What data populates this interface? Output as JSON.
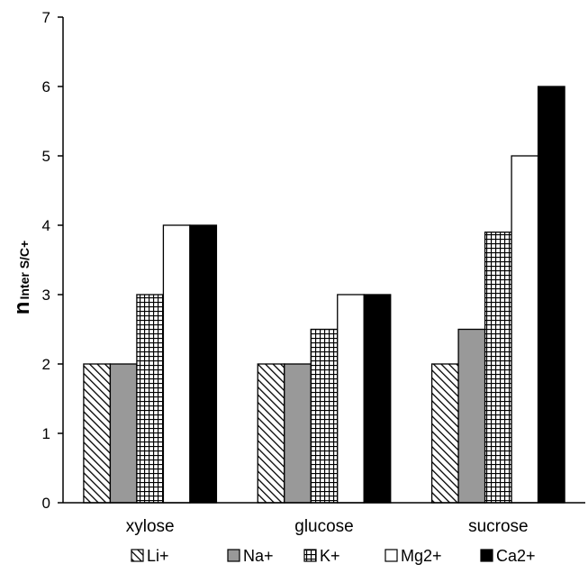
{
  "chart_data": {
    "type": "bar",
    "categories": [
      "xylose",
      "glucose",
      "sucrose"
    ],
    "series": [
      {
        "name": "Li+",
        "values": [
          2,
          2,
          2
        ],
        "pattern": "diagonal-hatch",
        "fill": "#ffffff"
      },
      {
        "name": "Na+",
        "values": [
          2,
          2,
          2.5
        ],
        "pattern": "solid",
        "fill": "#999999"
      },
      {
        "name": "K+",
        "values": [
          3,
          2.5,
          3.9
        ],
        "pattern": "grid",
        "fill": "#ffffff"
      },
      {
        "name": "Mg2+",
        "values": [
          4,
          3,
          5
        ],
        "pattern": "solid",
        "fill": "#ffffff"
      },
      {
        "name": "Ca2+",
        "values": [
          4,
          3,
          6
        ],
        "pattern": "solid",
        "fill": "#000000"
      }
    ],
    "ylabel_main": "n",
    "ylabel_sub": "Inter S/C+",
    "ylim": [
      0,
      7
    ],
    "yticks": [
      "0",
      "1",
      "2",
      "3",
      "4",
      "5",
      "6",
      "7"
    ],
    "grid": false,
    "legend_position": "bottom"
  }
}
